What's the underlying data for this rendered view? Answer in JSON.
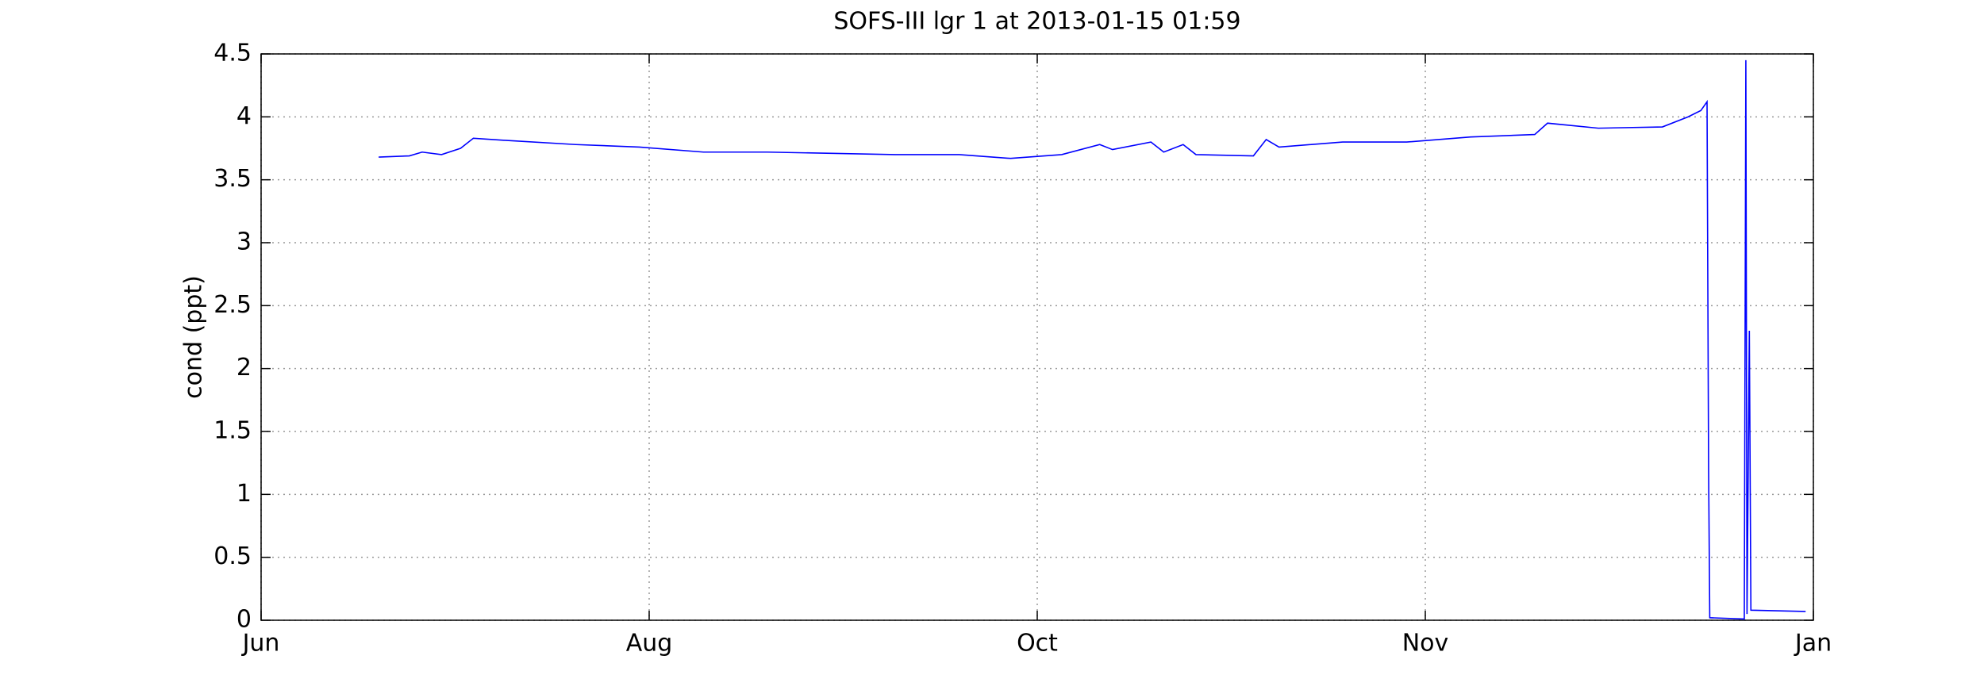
{
  "chart_data": {
    "type": "line",
    "title": "SOFS-III lgr 1 at 2013-01-15 01:59",
    "y_label": "cond (ppt)",
    "xlim": [
      0,
      4
    ],
    "xticks": [
      {
        "value": 0,
        "label": "Jun"
      },
      {
        "value": 1,
        "label": "Aug"
      },
      {
        "value": 2,
        "label": "Oct"
      },
      {
        "value": 3,
        "label": "Nov"
      },
      {
        "value": 4,
        "label": "Jan"
      }
    ],
    "ylim": [
      0,
      4.5
    ],
    "yticks": [
      0,
      0.5,
      1,
      1.5,
      2,
      2.5,
      3,
      3.5,
      4,
      4.5
    ],
    "grid": true,
    "x": [
      0.303,
      0.382,
      0.415,
      0.465,
      0.514,
      0.547,
      0.646,
      0.811,
      0.975,
      1.14,
      1.305,
      1.47,
      1.634,
      1.799,
      1.931,
      2.063,
      2.161,
      2.194,
      2.293,
      2.326,
      2.376,
      2.409,
      2.557,
      2.59,
      2.623,
      2.787,
      2.952,
      3.117,
      3.282,
      3.315,
      3.446,
      3.611,
      3.677,
      3.71,
      3.726,
      3.73,
      3.733,
      3.822,
      3.826,
      3.829,
      3.835,
      3.839,
      3.98
    ],
    "series": [
      {
        "color": "#0000ff",
        "values": [
          3.68,
          3.69,
          3.72,
          3.7,
          3.75,
          3.83,
          3.81,
          3.78,
          3.76,
          3.72,
          3.72,
          3.71,
          3.7,
          3.7,
          3.67,
          3.7,
          3.78,
          3.74,
          3.8,
          3.72,
          3.78,
          3.7,
          3.69,
          3.82,
          3.76,
          3.8,
          3.8,
          3.84,
          3.86,
          3.95,
          3.91,
          3.92,
          4.0,
          4.05,
          4.12,
          1.2,
          0.02,
          0.01,
          4.45,
          0.05,
          2.3,
          0.08,
          0.07
        ]
      }
    ]
  }
}
